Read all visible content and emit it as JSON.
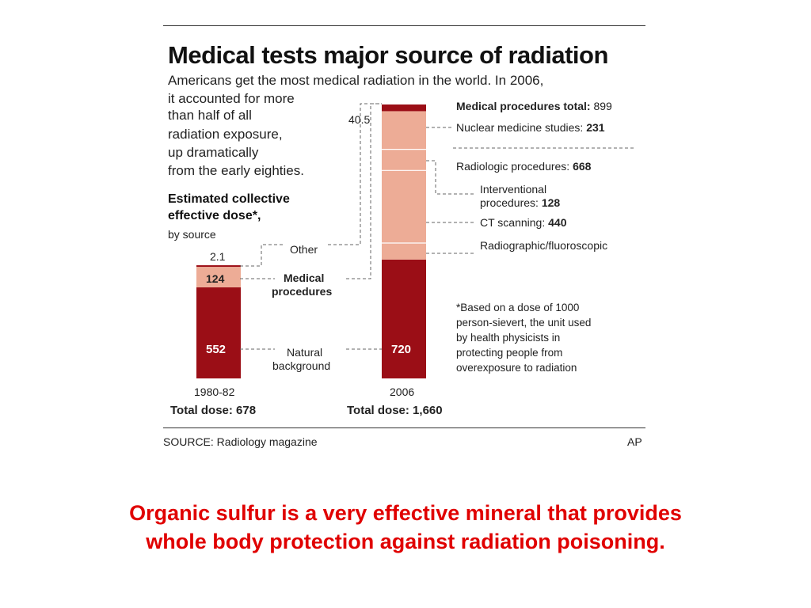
{
  "chart_data": {
    "type": "bar",
    "title": "Medical tests major source of radiation",
    "subtitle": "Americans get the most medical radiation in the world. In 2006,",
    "intro_lines": [
      "it accounted for more",
      "than half of all",
      "radiation exposure,",
      "up dramatically",
      "from the early eighties."
    ],
    "measure_lines": [
      "Estimated collective",
      "effective dose*,"
    ],
    "measure_sub": "by source",
    "categories": [
      "1980-82",
      "2006"
    ],
    "totals": [
      "Total dose: 678",
      "Total dose: 1,660"
    ],
    "series": [
      {
        "name": "Natural background",
        "values": [
          552,
          720
        ],
        "color": "#9b0e16"
      },
      {
        "name": "Medical procedures",
        "values": [
          124,
          899
        ],
        "color": "#edac96"
      },
      {
        "name": "Other",
        "values": [
          2.1,
          40.5
        ],
        "color": "#9b0e16"
      }
    ],
    "segment_labels": {
      "natural": [
        "552",
        "720"
      ],
      "medical_1980": "124",
      "other": [
        "2.1",
        "40.5"
      ]
    },
    "middle_labels": {
      "other": "Other",
      "medical": [
        "Medical",
        "procedures"
      ],
      "natural": [
        "Natural",
        "background"
      ]
    },
    "breakdown": {
      "medical_total_label": "Medical procedures total:",
      "medical_total_value": "899",
      "nuclear_label": "Nuclear medicine studies:",
      "nuclear_value": "231",
      "radiologic_label": "Radiologic procedures:",
      "radiologic_value": "668",
      "interventional_line1": "Interventional",
      "interventional_line2": "procedures:",
      "interventional_value": "128",
      "ct_label": "CT scanning:",
      "ct_value": "440",
      "radiographic_label": "Radiographic/fluoroscopic",
      "components": [
        {
          "name": "Nuclear medicine studies",
          "value": 231
        },
        {
          "name": "Interventional procedures",
          "value": 128
        },
        {
          "name": "CT scanning",
          "value": 440
        },
        {
          "name": "Radiographic/fluoroscopic",
          "value": 100
        }
      ]
    },
    "footnote_lines": [
      "*Based on a dose of 1000",
      "person-sievert, the unit used",
      "by health physicists in",
      "protecting people from",
      "overexposure to radiation"
    ],
    "source": "SOURCE: Radiology magazine",
    "credit": "AP"
  },
  "caption_lines": [
    "Organic sulfur is a very effective mineral that provides",
    "whole body protection against radiation poisoning."
  ]
}
